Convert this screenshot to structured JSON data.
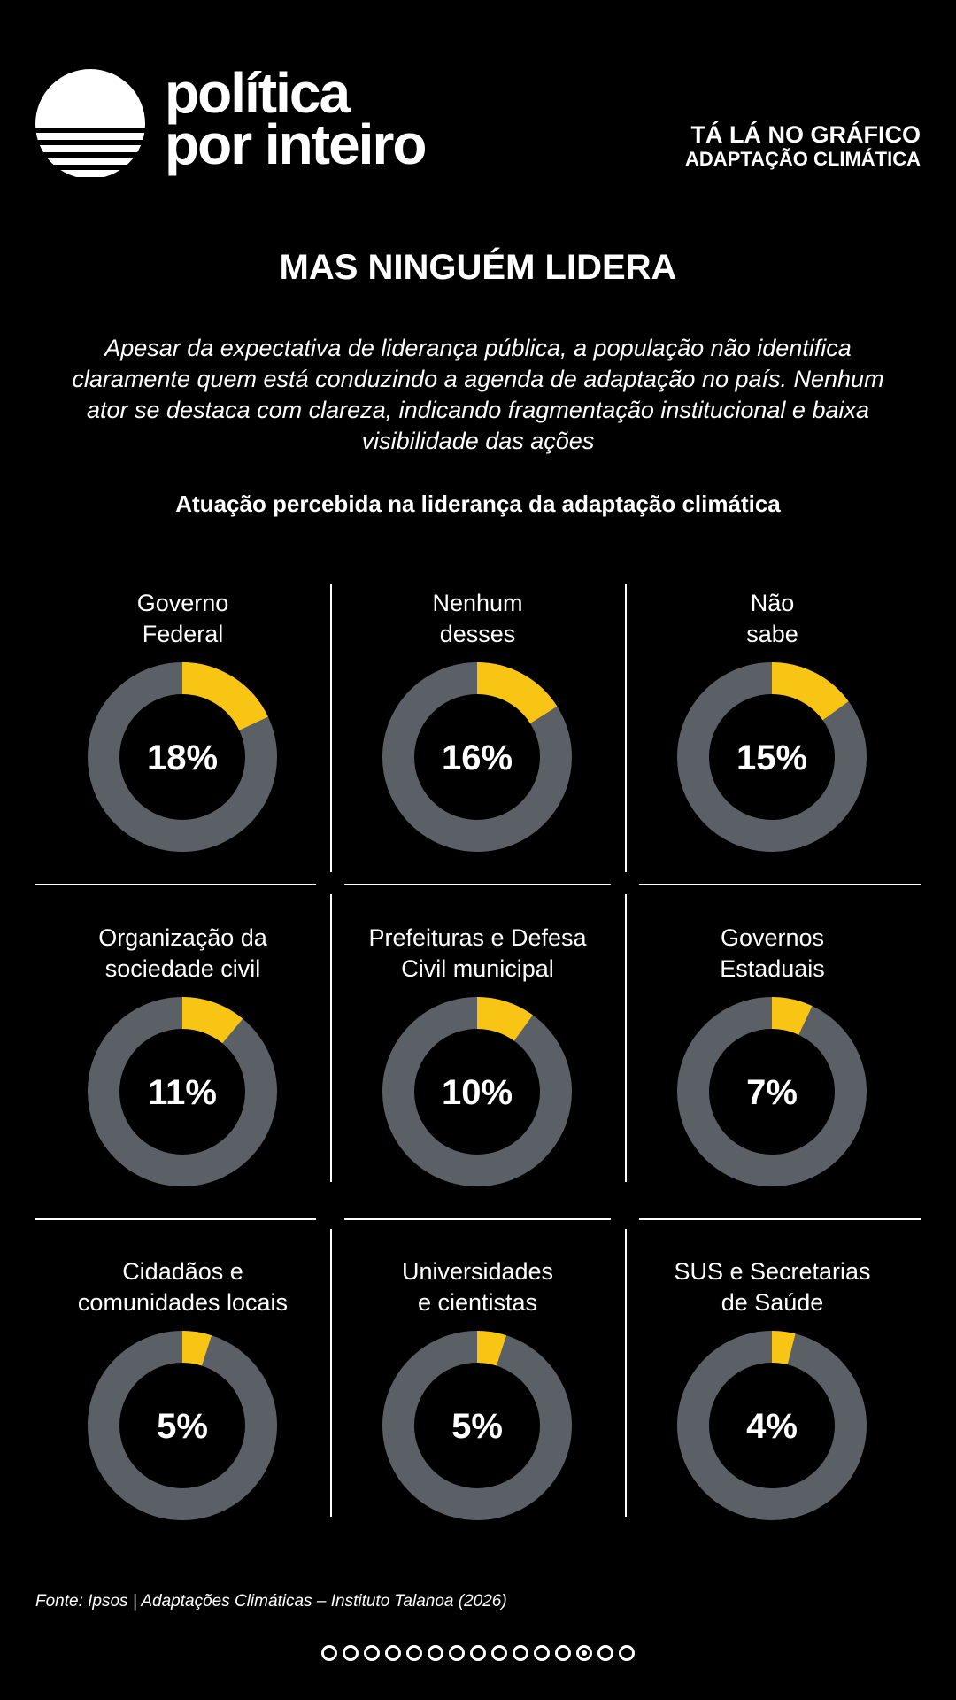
{
  "brand": {
    "line1": "política",
    "line2": "por inteiro"
  },
  "series": {
    "line1": "TÁ LÁ NO GRÁFICO",
    "line2": "ADAPTAÇÃO CLIMÁTICA"
  },
  "headline": "MAS NINGUÉM LIDERA",
  "intro": "Apesar da expectativa de liderança pública, a população não identifica claramente quem está conduzindo a agenda de adaptação no país. Nenhum ator se destaca com clareza, indicando fragmentação institucional e baixa visibilidade das ações",
  "source": "Fonte: Ipsos | Adaptações Climáticas – Instituto Talanoa (2026)",
  "colors": {
    "highlight": "#F9C515",
    "remainder": "#5B5F66",
    "background": "#000000"
  },
  "pager": {
    "total": 15,
    "active_index": 12
  },
  "chart_data": {
    "type": "pie",
    "title": "Atuação percebida na liderança da adaptação climática",
    "items": [
      {
        "label_lines": [
          "Governo",
          "Federal"
        ],
        "value": 18,
        "display": "18%"
      },
      {
        "label_lines": [
          "Nenhum",
          "desses"
        ],
        "value": 16,
        "display": "16%"
      },
      {
        "label_lines": [
          "Não",
          "sabe"
        ],
        "value": 15,
        "display": "15%"
      },
      {
        "label_lines": [
          "Organização da",
          "sociedade civil"
        ],
        "value": 11,
        "display": "11%"
      },
      {
        "label_lines": [
          "Prefeituras e Defesa",
          "Civil municipal"
        ],
        "value": 10,
        "display": "10%"
      },
      {
        "label_lines": [
          "Governos",
          "Estaduais"
        ],
        "value": 7,
        "display": "7%"
      },
      {
        "label_lines": [
          "Cidadãos e",
          "comunidades locais"
        ],
        "value": 5,
        "display": "5%"
      },
      {
        "label_lines": [
          "Universidades",
          "e cientistas"
        ],
        "value": 5,
        "display": "5%"
      },
      {
        "label_lines": [
          "SUS e Secretarias",
          "de Saúde"
        ],
        "value": 4,
        "display": "4%"
      }
    ]
  }
}
